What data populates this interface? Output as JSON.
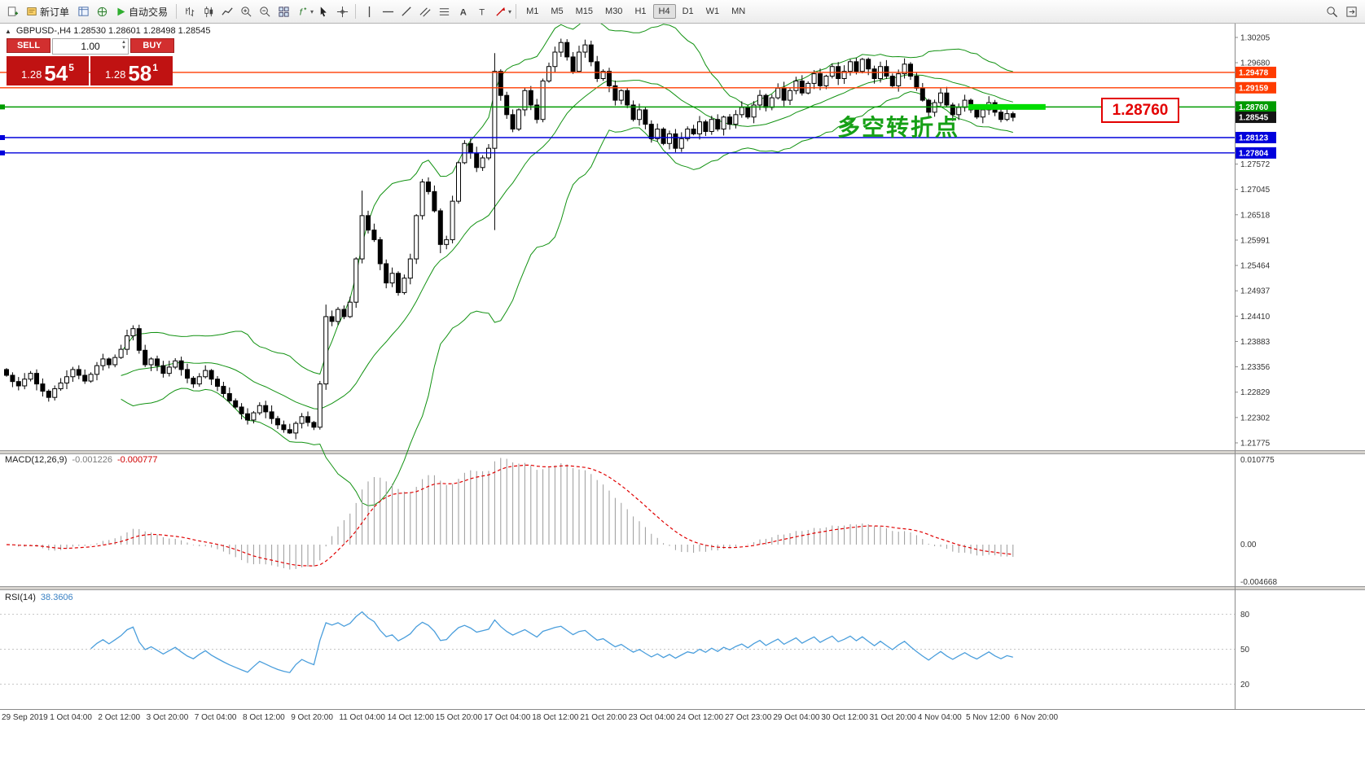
{
  "glyphs": {
    "tri_up": "▲",
    "tri_down": "▼",
    "caret": "▾"
  },
  "toolbar": {
    "new_order_label": "新订单",
    "autotrade_label": "自动交易",
    "timeframes": [
      "M1",
      "M5",
      "M15",
      "M30",
      "H1",
      "H4",
      "D1",
      "W1",
      "MN"
    ],
    "active_timeframe": "H4"
  },
  "chart": {
    "ohlc_header": "GBPUSD-,H4  1.28530 1.28601 1.28498 1.28545",
    "trade_panel": {
      "sell_label": "SELL",
      "buy_label": "BUY",
      "volume": "1.00",
      "sell_small": "1.28",
      "sell_big": "54",
      "sell_sup": "5",
      "buy_small": "1.28",
      "buy_big": "58",
      "buy_sup": "1"
    },
    "annotation_text": "多空转折点",
    "callout_text": "1.28760",
    "current_price": "1.28545",
    "hlines": [
      {
        "price": 1.29478,
        "label": "1.29478",
        "color": "#ff3c00",
        "handle": false
      },
      {
        "price": 1.29159,
        "label": "1.29159",
        "color": "#ff3c00",
        "handle": false
      },
      {
        "price": 1.2876,
        "label": "1.28760",
        "color": "#009b00",
        "handle": true
      },
      {
        "price": 1.28123,
        "label": "1.28123",
        "color": "#0000dc",
        "handle": true
      },
      {
        "price": 1.27804,
        "label": "1.27804",
        "color": "#0000dc",
        "handle": true
      }
    ],
    "highlight": {
      "price": 1.2876,
      "from_index": 160,
      "to_index": 172,
      "color": "#00dd00"
    }
  },
  "macd": {
    "label": "MACD(12,26,9)",
    "main_value": "-0.001226",
    "signal_value": "-0.000777",
    "axis": [
      "0.010775",
      "0.00",
      "-0.004668"
    ]
  },
  "rsi": {
    "label": "RSI(14)",
    "value": "38.3606",
    "levels": [
      "80",
      "50",
      "20"
    ]
  },
  "x_labels": [
    "29 Sep 2019",
    "1 Oct 04:00",
    "2 Oct 12:00",
    "3 Oct 20:00",
    "7 Oct 04:00",
    "8 Oct 12:00",
    "9 Oct 20:00",
    "11 Oct 04:00",
    "14 Oct 12:00",
    "15 Oct 20:00",
    "17 Oct 04:00",
    "18 Oct 12:00",
    "21 Oct 20:00",
    "23 Oct 04:00",
    "24 Oct 12:00",
    "27 Oct 23:00",
    "29 Oct 04:00",
    "30 Oct 12:00",
    "31 Oct 20:00",
    "4 Nov 04:00",
    "5 Nov 12:00",
    "6 Nov 20:00"
  ],
  "chart_data": {
    "type": "candlestick",
    "symbol": "GBPUSD-",
    "timeframe": "H4",
    "y_range": {
      "top": 1.30205,
      "bottom": 1.21775
    },
    "y_ticks": [
      "1.30205",
      "1.29680",
      "1.29153",
      "1.28626",
      "1.28099",
      "1.27572",
      "1.27045",
      "1.26518",
      "1.25991",
      "1.25464",
      "1.24937",
      "1.24410",
      "1.23883",
      "1.23356",
      "1.22829",
      "1.22302",
      "1.21775"
    ],
    "first_open": 1.233,
    "closes": [
      1.2318,
      1.2305,
      1.2296,
      1.231,
      1.2322,
      1.23,
      1.2285,
      1.2272,
      1.229,
      1.2302,
      1.2315,
      1.233,
      1.2318,
      1.2306,
      1.232,
      1.2338,
      1.2352,
      1.234,
      1.2355,
      1.2372,
      1.24,
      1.2415,
      1.237,
      1.234,
      1.2352,
      1.2338,
      1.2322,
      1.2335,
      1.2348,
      1.233,
      1.2312,
      1.23,
      1.2315,
      1.2328,
      1.231,
      1.2295,
      1.228,
      1.2265,
      1.2252,
      1.2238,
      1.2225,
      1.224,
      1.2255,
      1.2242,
      1.2228,
      1.2215,
      1.2205,
      1.2198,
      1.2218,
      1.2232,
      1.222,
      1.221,
      1.23,
      1.244,
      1.243,
      1.2455,
      1.244,
      1.247,
      1.256,
      1.265,
      1.262,
      1.26,
      1.255,
      1.251,
      1.253,
      1.249,
      1.252,
      1.256,
      1.265,
      1.272,
      1.27,
      1.266,
      1.259,
      1.26,
      1.268,
      1.276,
      1.28,
      1.278,
      1.275,
      1.277,
      1.279,
      1.295,
      1.29,
      1.286,
      1.283,
      1.287,
      1.291,
      1.288,
      1.285,
      1.293,
      1.296,
      1.299,
      1.301,
      1.298,
      1.295,
      1.299,
      1.3005,
      1.297,
      1.2935,
      1.295,
      1.292,
      1.289,
      1.291,
      1.288,
      1.285,
      1.287,
      1.284,
      1.281,
      1.283,
      1.28,
      1.282,
      1.279,
      1.281,
      1.283,
      1.282,
      1.2845,
      1.2825,
      1.285,
      1.283,
      1.2855,
      1.284,
      1.286,
      1.2875,
      1.2855,
      1.288,
      1.29,
      1.2875,
      1.2895,
      1.2915,
      1.289,
      1.291,
      1.293,
      1.2905,
      1.2925,
      1.2945,
      1.292,
      1.294,
      1.296,
      1.2935,
      1.295,
      1.297,
      1.295,
      1.2975,
      1.2955,
      1.2935,
      1.296,
      1.294,
      1.292,
      1.2945,
      1.2965,
      1.294,
      1.2915,
      1.289,
      1.2865,
      1.2885,
      1.2905,
      1.288,
      1.286,
      1.2875,
      1.289,
      1.287,
      1.2855,
      1.287,
      1.2885,
      1.2865,
      1.285,
      1.2862,
      1.28545
    ],
    "wick_overrides": {
      "21": {
        "h": 1.2422
      },
      "47": {
        "l": 1.2196
      },
      "52": {
        "l": 1.2205
      },
      "53": {
        "h": 1.2465
      },
      "59": {
        "h": 1.2702
      },
      "72": {
        "l": 1.2572
      },
      "81": {
        "h": 1.2988,
        "l": 1.262
      },
      "92": {
        "h": 1.3018
      },
      "96": {
        "h": 1.3016
      },
      "111": {
        "l": 1.2782
      },
      "142": {
        "h": 1.2978
      },
      "167": {
        "l": 1.2846
      }
    },
    "indicators": [
      "Bollinger Bands",
      "MACD(12,26,9)",
      "RSI(14)"
    ]
  }
}
